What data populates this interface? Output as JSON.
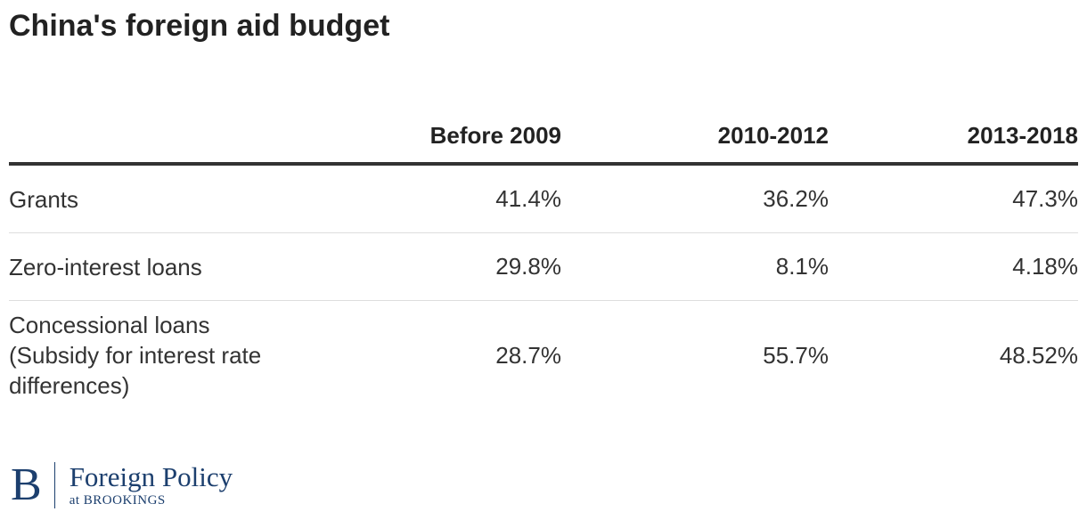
{
  "title": "China's foreign aid budget",
  "table": {
    "headers": [
      "",
      "Before 2009",
      "2010-2012",
      "2013-2018"
    ],
    "rows": [
      {
        "label": "Grants",
        "values": [
          "41.4%",
          "36.2%",
          "47.3%"
        ]
      },
      {
        "label": "Zero-interest loans",
        "values": [
          "29.8%",
          "8.1%",
          "4.18%"
        ]
      },
      {
        "label": "Concessional loans (Subsidy for interest rate differences)",
        "values": [
          "28.7%",
          "55.7%",
          "48.52%"
        ]
      }
    ]
  },
  "logo": {
    "mark": "B",
    "name": "Foreign Policy",
    "sub": "at BROOKINGS"
  },
  "chart_data": {
    "type": "table",
    "title": "China's foreign aid budget",
    "columns": [
      "Before 2009",
      "2010-2012",
      "2013-2018"
    ],
    "rows": [
      "Grants",
      "Zero-interest loans",
      "Concessional loans (Subsidy for interest rate differences)"
    ],
    "series": [
      {
        "name": "Before 2009",
        "values": [
          41.4,
          29.8,
          28.7
        ]
      },
      {
        "name": "2010-2012",
        "values": [
          36.2,
          8.1,
          55.7
        ]
      },
      {
        "name": "2013-2018",
        "values": [
          47.3,
          4.18,
          48.52
        ]
      }
    ],
    "unit": "%"
  },
  "colors": {
    "text": "#222222",
    "rule": "#333333",
    "brand": "#1c3f6e"
  }
}
